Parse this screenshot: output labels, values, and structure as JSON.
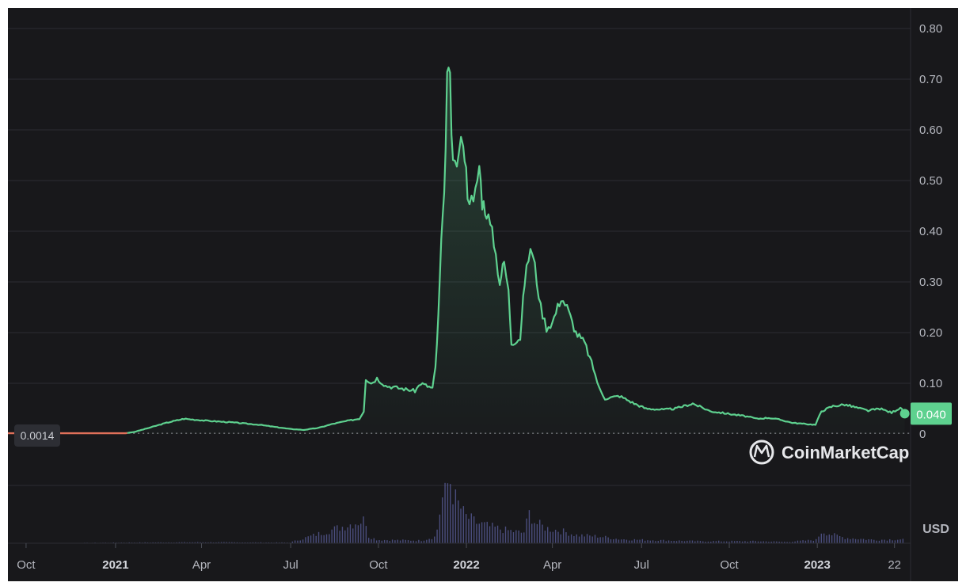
{
  "chart_data": {
    "type": "area",
    "currency_label": "USD",
    "watermark": "CoinMarketCap",
    "start_price_label": "0.0014",
    "current_price_label": "0.040",
    "ylim": [
      0,
      0.8
    ],
    "y_ticks": [
      "0",
      "0.10",
      "0.20",
      "0.30",
      "0.40",
      "0.50",
      "0.60",
      "0.70",
      "0.80"
    ],
    "x_ticks": [
      {
        "t": 0,
        "label": "Oct",
        "bold": false
      },
      {
        "t": 3.06,
        "label": "2021",
        "bold": true
      },
      {
        "t": 6.0,
        "label": "Apr",
        "bold": false
      },
      {
        "t": 9.05,
        "label": "Jul",
        "bold": false
      },
      {
        "t": 12.05,
        "label": "Oct",
        "bold": false
      },
      {
        "t": 15.06,
        "label": "2022",
        "bold": true
      },
      {
        "t": 18.0,
        "label": "Apr",
        "bold": false
      },
      {
        "t": 21.05,
        "label": "Jul",
        "bold": false
      },
      {
        "t": 24.05,
        "label": "Oct",
        "bold": false
      },
      {
        "t": 27.06,
        "label": "2023",
        "bold": true
      },
      {
        "t": 29.7,
        "label": "22",
        "bold": false
      }
    ],
    "xlim": [
      -0.35,
      30.25
    ],
    "colors": {
      "up": "#5ed18f",
      "down": "#e0705a",
      "volume": "#5b5f9e",
      "grid": "#2c2d33",
      "badge": "#5ed18f"
    },
    "price_series": [
      [
        -1.2,
        0.0014
      ],
      [
        3.4,
        0.0014
      ],
      [
        3.7,
        0.004
      ],
      [
        4.2,
        0.012
      ],
      [
        4.8,
        0.022
      ],
      [
        5.4,
        0.03
      ],
      [
        6.2,
        0.026
      ],
      [
        7.0,
        0.023
      ],
      [
        8.0,
        0.018
      ],
      [
        9.0,
        0.01
      ],
      [
        9.5,
        0.008
      ],
      [
        10.0,
        0.012
      ],
      [
        10.5,
        0.02
      ],
      [
        11.0,
        0.026
      ],
      [
        11.4,
        0.03
      ],
      [
        11.55,
        0.045
      ],
      [
        11.62,
        0.11
      ],
      [
        11.8,
        0.1
      ],
      [
        12.0,
        0.11
      ],
      [
        12.3,
        0.095
      ],
      [
        12.8,
        0.09
      ],
      [
        13.3,
        0.085
      ],
      [
        13.5,
        0.1
      ],
      [
        13.9,
        0.09
      ],
      [
        14.0,
        0.13
      ],
      [
        14.1,
        0.23
      ],
      [
        14.2,
        0.38
      ],
      [
        14.3,
        0.46
      ],
      [
        14.4,
        0.71
      ],
      [
        14.5,
        0.69
      ],
      [
        14.6,
        0.52
      ],
      [
        14.8,
        0.55
      ],
      [
        14.95,
        0.59
      ],
      [
        15.1,
        0.48
      ],
      [
        15.3,
        0.45
      ],
      [
        15.5,
        0.53
      ],
      [
        15.6,
        0.46
      ],
      [
        15.75,
        0.44
      ],
      [
        16.0,
        0.38
      ],
      [
        16.2,
        0.3
      ],
      [
        16.35,
        0.34
      ],
      [
        16.5,
        0.28
      ],
      [
        16.6,
        0.18
      ],
      [
        16.9,
        0.19
      ],
      [
        17.05,
        0.3
      ],
      [
        17.25,
        0.37
      ],
      [
        17.4,
        0.33
      ],
      [
        17.6,
        0.25
      ],
      [
        17.8,
        0.21
      ],
      [
        18.0,
        0.22
      ],
      [
        18.3,
        0.27
      ],
      [
        18.5,
        0.25
      ],
      [
        18.8,
        0.2
      ],
      [
        19.1,
        0.18
      ],
      [
        19.4,
        0.13
      ],
      [
        19.6,
        0.09
      ],
      [
        19.8,
        0.07
      ],
      [
        20.3,
        0.075
      ],
      [
        20.8,
        0.06
      ],
      [
        21.2,
        0.05
      ],
      [
        21.8,
        0.048
      ],
      [
        22.2,
        0.05
      ],
      [
        22.8,
        0.06
      ],
      [
        23.4,
        0.045
      ],
      [
        24.0,
        0.04
      ],
      [
        24.6,
        0.035
      ],
      [
        25.0,
        0.03
      ],
      [
        25.4,
        0.032
      ],
      [
        25.8,
        0.028
      ],
      [
        26.2,
        0.022
      ],
      [
        26.6,
        0.02
      ],
      [
        27.0,
        0.018
      ],
      [
        27.2,
        0.045
      ],
      [
        27.6,
        0.055
      ],
      [
        28.0,
        0.058
      ],
      [
        28.4,
        0.052
      ],
      [
        28.8,
        0.046
      ],
      [
        29.2,
        0.05
      ],
      [
        29.6,
        0.042
      ],
      [
        29.9,
        0.052
      ],
      [
        30.05,
        0.04
      ]
    ],
    "volume_series": [
      [
        0,
        0
      ],
      [
        3.2,
        0.01
      ],
      [
        6.0,
        0.015
      ],
      [
        9.0,
        0.01
      ],
      [
        11.6,
        0.35
      ],
      [
        11.7,
        0.1
      ],
      [
        12.0,
        0.05
      ],
      [
        13.5,
        0.04
      ],
      [
        14.0,
        0.1
      ],
      [
        14.2,
        0.65
      ],
      [
        14.35,
        0.75
      ],
      [
        14.45,
        1.0
      ],
      [
        14.6,
        0.7
      ],
      [
        14.8,
        0.55
      ],
      [
        15.0,
        0.4
      ],
      [
        15.4,
        0.3
      ],
      [
        15.8,
        0.25
      ],
      [
        16.3,
        0.2
      ],
      [
        17.0,
        0.15
      ],
      [
        17.2,
        0.45
      ],
      [
        17.4,
        0.3
      ],
      [
        17.8,
        0.22
      ],
      [
        18.3,
        0.18
      ],
      [
        18.8,
        0.12
      ],
      [
        19.6,
        0.1
      ],
      [
        20.3,
        0.06
      ],
      [
        21.0,
        0.05
      ],
      [
        22.0,
        0.04
      ],
      [
        23.0,
        0.03
      ],
      [
        25.0,
        0.03
      ],
      [
        26.0,
        0.02
      ],
      [
        27.0,
        0.05
      ],
      [
        27.2,
        0.18
      ],
      [
        27.6,
        0.12
      ],
      [
        28.0,
        0.08
      ],
      [
        29.0,
        0.05
      ],
      [
        30.0,
        0.06
      ]
    ]
  }
}
